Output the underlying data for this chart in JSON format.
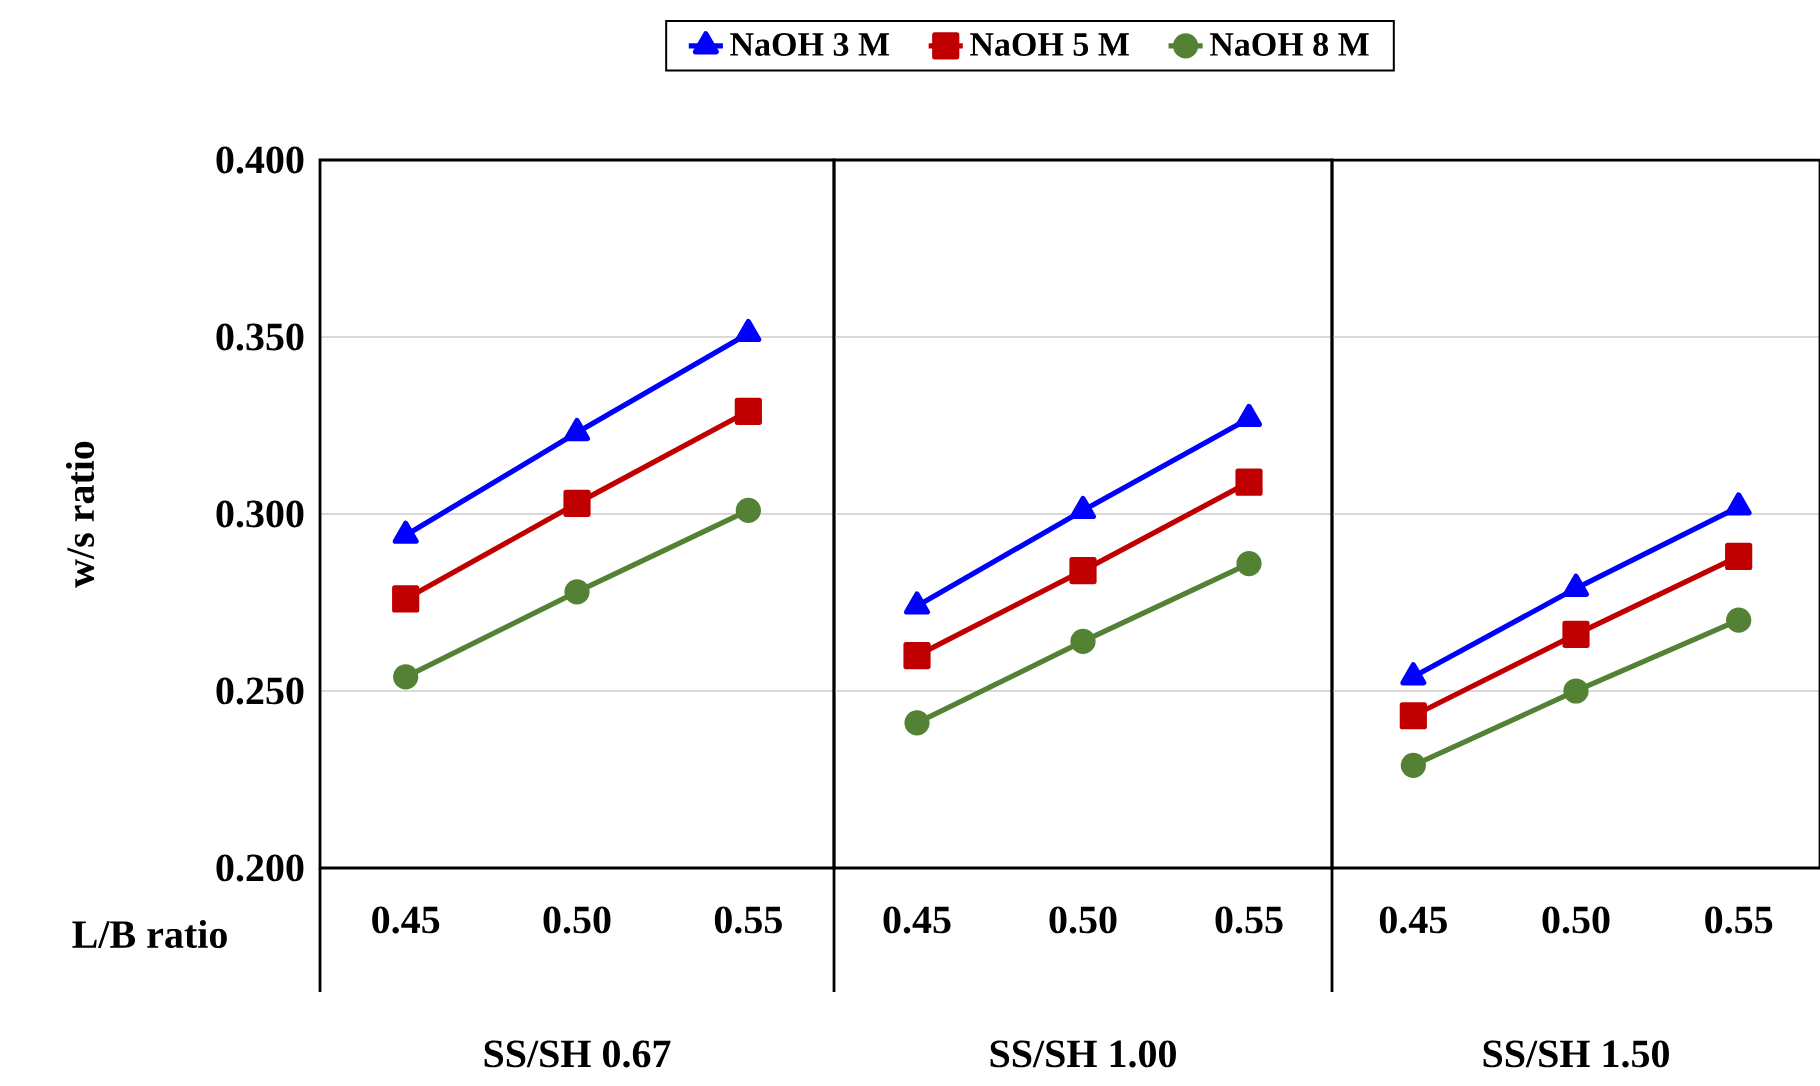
{
  "chart_data": [
    {
      "type": "line",
      "categories": [
        "0.45",
        "0.50",
        "0.55"
      ],
      "xlabel": "SS/SH 0.67",
      "ylabel": "w/s ratio",
      "ylim": [
        0.2,
        0.4
      ],
      "yticks": [
        {
          "value": 0.2,
          "label": "0.200"
        },
        {
          "value": 0.25,
          "label": "0.250"
        },
        {
          "value": 0.3,
          "label": "0.300"
        },
        {
          "value": 0.35,
          "label": "0.350"
        },
        {
          "value": 0.4,
          "label": "0.400"
        }
      ],
      "grid": "y",
      "legend": "top",
      "annotations": [
        "L/B ratio"
      ],
      "series": [
        {
          "name": "NaOH 3 M",
          "color": "#0000ff",
          "marker": "triangle",
          "values": [
            0.294,
            0.323,
            0.351
          ]
        },
        {
          "name": "NaOH 5 M",
          "color": "#c00000",
          "marker": "square",
          "values": [
            0.276,
            0.303,
            0.329
          ]
        },
        {
          "name": "NaOH 8 M",
          "color": "#548235",
          "marker": "circle",
          "values": [
            0.254,
            0.278,
            0.301
          ]
        }
      ]
    },
    {
      "type": "line",
      "categories": [
        "0.45",
        "0.50",
        "0.55"
      ],
      "xlabel": "SS/SH 1.00",
      "ylim": [
        0.2,
        0.4
      ],
      "yticks": [
        0.2,
        0.25,
        0.3,
        0.35,
        0.4
      ],
      "grid": "y",
      "tick_labels": "x",
      "series": [
        {
          "color": "#0000ff",
          "marker": "triangle",
          "values": [
            0.274,
            0.301,
            0.327
          ]
        },
        {
          "color": "#c00000",
          "marker": "square",
          "values": [
            0.26,
            0.284,
            0.309
          ]
        },
        {
          "color": "#548235",
          "marker": "circle",
          "values": [
            0.241,
            0.264,
            0.286
          ]
        }
      ]
    },
    {
      "type": "line",
      "categories": [
        "0.45",
        "0.50",
        "0.55"
      ],
      "xlabel": "SS/SH 1.50",
      "ylim": [
        0.2,
        0.4
      ],
      "yticks": [
        0.2,
        0.25,
        0.3,
        0.35,
        0.4
      ],
      "grid": "y",
      "tick_labels": "x",
      "series": [
        {
          "color": "#0000ff",
          "marker": "triangle",
          "values": [
            0.254,
            0.279,
            0.302
          ]
        },
        {
          "color": "#c00000",
          "marker": "square",
          "values": [
            0.243,
            0.266,
            0.288
          ]
        },
        {
          "color": "#548235",
          "marker": "circle",
          "values": [
            0.229,
            0.25,
            0.27
          ]
        }
      ]
    }
  ]
}
